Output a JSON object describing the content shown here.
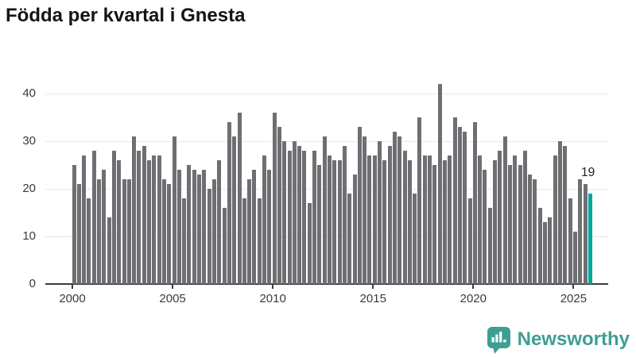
{
  "title": "Födda per kvartal i Gnesta",
  "annotation": {
    "last_value_label": "19"
  },
  "logo": {
    "text": "Newsworthy",
    "icon": "newsworthy-speech-bubble-chart-icon"
  },
  "colors": {
    "bar": "#6e6e73",
    "highlight": "#00a69c",
    "grid": "#e8e8e8",
    "axis": "#3c3c3c",
    "tick_text": "#3a3a3a",
    "title_text": "#141414",
    "logo_teal": "#3e9e94",
    "background": "#ffffff"
  },
  "chart_data": {
    "type": "bar",
    "title": "Födda per kvartal i Gnesta",
    "xlabel": "",
    "ylabel": "",
    "x_unit": "quarter",
    "start_quarter": "2000Q1",
    "end_quarter": "2025Q4",
    "x_tick_labels": [
      "2000",
      "2005",
      "2010",
      "2015",
      "2020",
      "2025"
    ],
    "y_tick_labels": [
      "0",
      "10",
      "20",
      "30",
      "40"
    ],
    "y_ticks": [
      0,
      10,
      20,
      30,
      40
    ],
    "ylim": [
      0,
      43
    ],
    "grid": "horizontal",
    "legend": "none",
    "highlight": {
      "index": 103,
      "quarter": "2025Q4",
      "value": 19,
      "label": "19"
    },
    "values": [
      25,
      21,
      27,
      18,
      28,
      22,
      24,
      14,
      28,
      26,
      22,
      22,
      31,
      28,
      29,
      26,
      27,
      27,
      22,
      21,
      31,
      24,
      18,
      25,
      24,
      23,
      24,
      20,
      22,
      26,
      16,
      34,
      31,
      36,
      18,
      22,
      24,
      18,
      27,
      24,
      36,
      33,
      30,
      28,
      30,
      29,
      28,
      17,
      28,
      25,
      31,
      27,
      26,
      26,
      29,
      19,
      23,
      33,
      31,
      27,
      27,
      30,
      26,
      29,
      32,
      31,
      28,
      26,
      19,
      35,
      27,
      27,
      25,
      42,
      26,
      27,
      35,
      33,
      32,
      18,
      34,
      27,
      24,
      16,
      26,
      28,
      31,
      25,
      27,
      25,
      28,
      23,
      22,
      16,
      13,
      14,
      27,
      30,
      29,
      18,
      11,
      22,
      21,
      19
    ]
  }
}
